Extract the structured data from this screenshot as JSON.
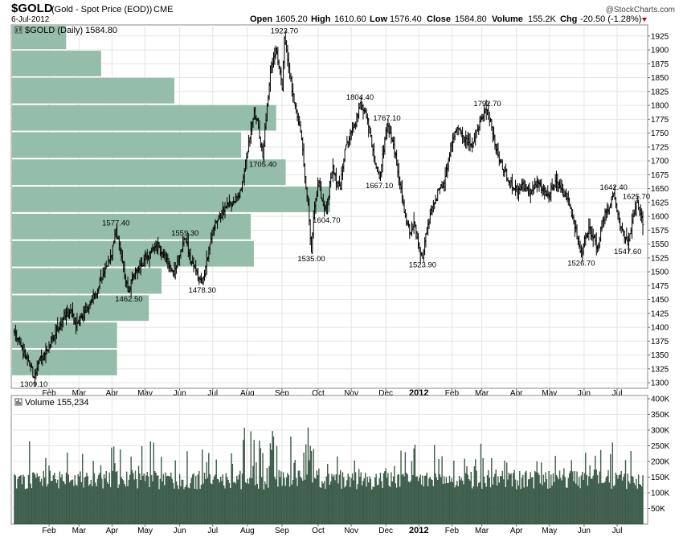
{
  "header": {
    "symbol": "$GOLD",
    "description": "(Gold - Spot Price (EOD))",
    "exchange": "CME",
    "date": "6-Jul-2012",
    "brand": "@StockCharts.com",
    "open_label": "Open",
    "open": "1605.20",
    "high_label": "High",
    "high": "1610.60",
    "low_label": "Low",
    "low": "1576.40",
    "close_label": "Close",
    "close": "1584.80",
    "volume_label": "Volume",
    "volume": "155.2K",
    "chg_label": "Chg",
    "chg": "-20.50 (-1.28%)",
    "chg_color": "#cc0000"
  },
  "chart_data": [
    {
      "type": "ohlc",
      "title": "$GOLD (Daily) 1584.80",
      "ylim": [
        1290,
        1945
      ],
      "ticks": [
        1300,
        1325,
        1350,
        1375,
        1400,
        1425,
        1450,
        1475,
        1500,
        1525,
        1550,
        1575,
        1600,
        1625,
        1650,
        1675,
        1700,
        1725,
        1750,
        1775,
        1800,
        1825,
        1850,
        1875,
        1900,
        1925
      ],
      "months": [
        "Feb",
        "Mar",
        "Apr",
        "May",
        "Jun",
        "Jul",
        "Aug",
        "Sep",
        "Oct",
        "Nov",
        "Dec",
        "2012",
        "Feb",
        "Mar",
        "Apr",
        "May",
        "Jun",
        "Jul"
      ],
      "keypoints": [
        [
          0,
          1390
        ],
        [
          5,
          1370
        ],
        [
          10,
          1345
        ],
        [
          15,
          1330
        ],
        [
          18,
          1309.1
        ],
        [
          22,
          1335
        ],
        [
          27,
          1350
        ],
        [
          32,
          1365
        ],
        [
          37,
          1385
        ],
        [
          42,
          1405
        ],
        [
          47,
          1420
        ],
        [
          52,
          1430
        ],
        [
          57,
          1400
        ],
        [
          62,
          1420
        ],
        [
          66,
          1430
        ],
        [
          70,
          1445
        ],
        [
          75,
          1460
        ],
        [
          80,
          1490
        ],
        [
          85,
          1510
        ],
        [
          90,
          1530
        ],
        [
          94,
          1577.4
        ],
        [
          98,
          1540
        ],
        [
          103,
          1480
        ],
        [
          106,
          1462.5
        ],
        [
          110,
          1495
        ],
        [
          114,
          1505
        ],
        [
          118,
          1510
        ],
        [
          122,
          1525
        ],
        [
          126,
          1535
        ],
        [
          130,
          1545
        ],
        [
          134,
          1545
        ],
        [
          138,
          1530
        ],
        [
          142,
          1515
        ],
        [
          146,
          1500
        ],
        [
          149,
          1505
        ],
        [
          151,
          1520
        ],
        [
          153,
          1530
        ],
        [
          155,
          1540
        ],
        [
          158,
          1559.3
        ],
        [
          162,
          1530
        ],
        [
          166,
          1510
        ],
        [
          170,
          1490
        ],
        [
          174,
          1478.3
        ],
        [
          178,
          1520
        ],
        [
          182,
          1560
        ],
        [
          186,
          1590
        ],
        [
          190,
          1600
        ],
        [
          194,
          1610
        ],
        [
          198,
          1620
        ],
        [
          202,
          1625
        ],
        [
          206,
          1635
        ],
        [
          210,
          1650
        ],
        [
          214,
          1700
        ],
        [
          218,
          1740
        ],
        [
          222,
          1790
        ],
        [
          226,
          1760
        ],
        [
          230,
          1705.4
        ],
        [
          234,
          1800
        ],
        [
          238,
          1870
        ],
        [
          242,
          1900
        ],
        [
          246,
          1860
        ],
        [
          248,
          1830
        ],
        [
          250,
          1923.7
        ],
        [
          254,
          1870
        ],
        [
          258,
          1820
        ],
        [
          262,
          1780
        ],
        [
          266,
          1740
        ],
        [
          270,
          1650
        ],
        [
          272,
          1620
        ],
        [
          275,
          1535
        ],
        [
          278,
          1620
        ],
        [
          282,
          1660
        ],
        [
          286,
          1620
        ],
        [
          289,
          1604.7
        ],
        [
          292,
          1660
        ],
        [
          295,
          1690
        ],
        [
          298,
          1660
        ],
        [
          302,
          1650
        ],
        [
          306,
          1720
        ],
        [
          310,
          1740
        ],
        [
          314,
          1760
        ],
        [
          318,
          1780
        ],
        [
          320,
          1804.4
        ],
        [
          324,
          1790
        ],
        [
          328,
          1760
        ],
        [
          332,
          1720
        ],
        [
          335,
          1690
        ],
        [
          338,
          1667.1
        ],
        [
          342,
          1720
        ],
        [
          345,
          1767.1
        ],
        [
          349,
          1740
        ],
        [
          353,
          1710
        ],
        [
          358,
          1650
        ],
        [
          362,
          1600
        ],
        [
          366,
          1570
        ],
        [
          370,
          1590
        ],
        [
          374,
          1550
        ],
        [
          378,
          1523.9
        ],
        [
          382,
          1580
        ],
        [
          386,
          1610
        ],
        [
          390,
          1630
        ],
        [
          394,
          1650
        ],
        [
          398,
          1660
        ],
        [
          402,
          1700
        ],
        [
          406,
          1740
        ],
        [
          410,
          1760
        ],
        [
          414,
          1750
        ],
        [
          418,
          1740
        ],
        [
          422,
          1730
        ],
        [
          426,
          1740
        ],
        [
          430,
          1760
        ],
        [
          434,
          1780
        ],
        [
          438,
          1792.7
        ],
        [
          442,
          1760
        ],
        [
          446,
          1720
        ],
        [
          450,
          1700
        ],
        [
          454,
          1680
        ],
        [
          458,
          1660
        ],
        [
          462,
          1650
        ],
        [
          466,
          1640
        ],
        [
          470,
          1660
        ],
        [
          474,
          1650
        ],
        [
          478,
          1640
        ],
        [
          482,
          1660
        ],
        [
          486,
          1660
        ],
        [
          490,
          1650
        ],
        [
          494,
          1640
        ],
        [
          498,
          1650
        ],
        [
          502,
          1660
        ],
        [
          506,
          1650
        ],
        [
          510,
          1640
        ],
        [
          514,
          1620
        ],
        [
          518,
          1590
        ],
        [
          522,
          1560
        ],
        [
          525,
          1526.7
        ],
        [
          528,
          1560
        ],
        [
          532,
          1580
        ],
        [
          536,
          1560
        ],
        [
          540,
          1545
        ],
        [
          544,
          1580
        ],
        [
          548,
          1610
        ],
        [
          552,
          1620
        ],
        [
          555,
          1642.4
        ],
        [
          558,
          1610
        ],
        [
          562,
          1580
        ],
        [
          565,
          1560
        ],
        [
          568,
          1547.6
        ],
        [
          572,
          1590
        ],
        [
          576,
          1625.7
        ],
        [
          580,
          1605
        ],
        [
          582,
          1584.8
        ]
      ],
      "annotations": [
        {
          "label": "1309.10",
          "idx": 18,
          "value": 1309.1,
          "pos": "below"
        },
        {
          "label": "1577.40",
          "idx": 94,
          "value": 1577.4,
          "pos": "above"
        },
        {
          "label": "1462.50",
          "idx": 106,
          "value": 1462.5,
          "pos": "below"
        },
        {
          "label": "1559.30",
          "idx": 158,
          "value": 1559.3,
          "pos": "above"
        },
        {
          "label": "1478.30",
          "idx": 174,
          "value": 1478.3,
          "pos": "below"
        },
        {
          "label": "1705.40",
          "idx": 230,
          "value": 1705.4,
          "pos": "below"
        },
        {
          "label": "1923.70",
          "idx": 250,
          "value": 1923.7,
          "pos": "above"
        },
        {
          "label": "1535.00",
          "idx": 275,
          "value": 1535.0,
          "pos": "below"
        },
        {
          "label": "1604.70",
          "idx": 289,
          "value": 1604.7,
          "pos": "below"
        },
        {
          "label": "1804.40",
          "idx": 320,
          "value": 1804.4,
          "pos": "above"
        },
        {
          "label": "1667.10",
          "idx": 338,
          "value": 1667.1,
          "pos": "below"
        },
        {
          "label": "1767.10",
          "idx": 345,
          "value": 1767.1,
          "pos": "above"
        },
        {
          "label": "1523.90",
          "idx": 378,
          "value": 1523.9,
          "pos": "below"
        },
        {
          "label": "1792.70",
          "idx": 438,
          "value": 1792.7,
          "pos": "above"
        },
        {
          "label": "1526.70",
          "idx": 525,
          "value": 1526.7,
          "pos": "below"
        },
        {
          "label": "1642.40",
          "idx": 555,
          "value": 1642.4,
          "pos": "above"
        },
        {
          "label": "1547.60",
          "idx": 568,
          "value": 1547.6,
          "pos": "below"
        },
        {
          "label": "1625.70",
          "idx": 576,
          "value": 1625.7,
          "pos": "above"
        }
      ],
      "volume_by_price": [
        {
          "from": 1900,
          "to": 1945,
          "rel": 0.17
        },
        {
          "from": 1851,
          "to": 1900,
          "rel": 0.28
        },
        {
          "from": 1802,
          "to": 1851,
          "rel": 0.51
        },
        {
          "from": 1753,
          "to": 1802,
          "rel": 0.83
        },
        {
          "from": 1704,
          "to": 1753,
          "rel": 0.72
        },
        {
          "from": 1655,
          "to": 1704,
          "rel": 0.86
        },
        {
          "from": 1606,
          "to": 1655,
          "rel": 1.0
        },
        {
          "from": 1557,
          "to": 1606,
          "rel": 0.75
        },
        {
          "from": 1508,
          "to": 1557,
          "rel": 0.76
        },
        {
          "from": 1459,
          "to": 1508,
          "rel": 0.47
        },
        {
          "from": 1410,
          "to": 1459,
          "rel": 0.43
        },
        {
          "from": 1361,
          "to": 1410,
          "rel": 0.33
        },
        {
          "from": 1312,
          "to": 1361,
          "rel": 0.33
        }
      ],
      "vbp_color": "#8fbaa5",
      "bar_color": "#000000"
    },
    {
      "type": "bar",
      "title": "Volume 155,234",
      "ylim": [
        0,
        400000
      ],
      "tick_labels": [
        "50K",
        "100K",
        "150K",
        "200K",
        "250K",
        "300K",
        "350K",
        "400K"
      ],
      "tick_values": [
        50000,
        100000,
        150000,
        200000,
        250000,
        300000,
        350000,
        400000
      ],
      "months": [
        "Feb",
        "Mar",
        "Apr",
        "May",
        "Jun",
        "Jul",
        "Aug",
        "Sep",
        "Oct",
        "Nov",
        "Dec",
        "2012",
        "Feb",
        "Mar",
        "Apr",
        "May",
        "Jun",
        "Jul"
      ],
      "last_value": 155234,
      "bar_color": "#3f6b52",
      "bar_stroke": "#1d3327"
    }
  ]
}
